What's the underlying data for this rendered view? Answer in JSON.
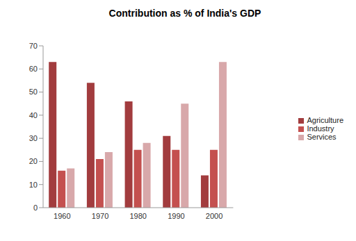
{
  "chart_data": {
    "type": "bar",
    "title": "Contribution as % of India's GDP",
    "categories": [
      "1960",
      "1970",
      "1980",
      "1990",
      "2000"
    ],
    "series": [
      {
        "name": "Agriculture",
        "color": "#a23c3e",
        "values": [
          63,
          54,
          46,
          31,
          14
        ]
      },
      {
        "name": "Industry",
        "color": "#c4504f",
        "values": [
          16,
          21,
          25,
          25,
          25
        ]
      },
      {
        "name": "Services",
        "color": "#d8a8aa",
        "values": [
          17,
          24,
          28,
          45,
          63
        ]
      }
    ],
    "ylim": [
      0,
      70
    ],
    "yticks": [
      0,
      10,
      20,
      30,
      40,
      50,
      60,
      70
    ],
    "grid": false,
    "legend": "right"
  }
}
